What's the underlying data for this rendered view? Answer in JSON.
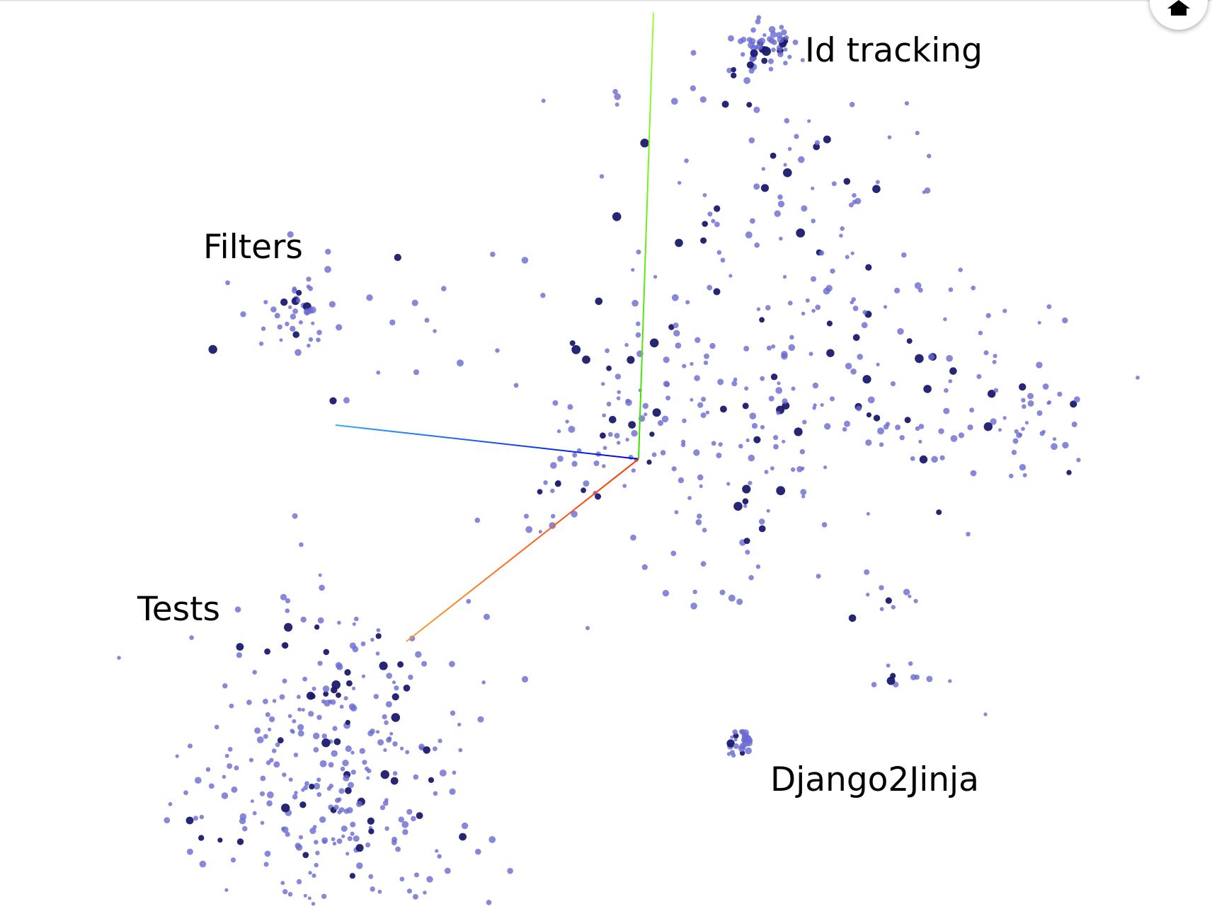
{
  "labels": {
    "id_tracking": "Id tracking",
    "filters": "Filters",
    "tests": "Tests",
    "django2jinja": "Django2Jinja"
  },
  "axes": {
    "x_axis_color": "#ff3300",
    "x_axis_tail_color": "#ff9933",
    "y_axis_color": "#33dd00",
    "y_axis_tail_color": "#99ff33",
    "z_axis_color": "#0000dd",
    "z_axis_tail_color": "#33aaff"
  },
  "points": {
    "light_color": "#6a6ad2",
    "dark_color": "#1a1a6e"
  },
  "icons": {
    "home": "home-icon"
  }
}
